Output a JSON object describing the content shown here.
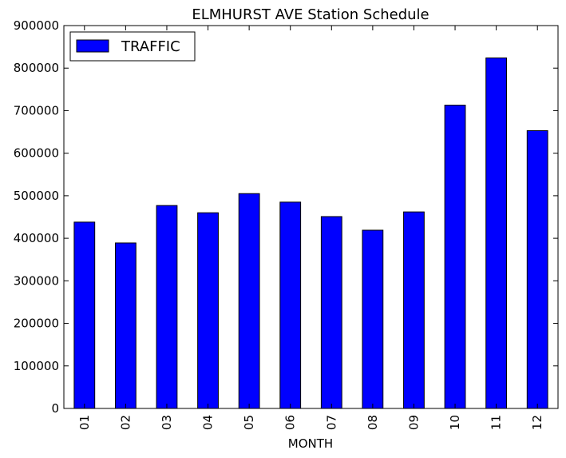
{
  "chart_data": {
    "type": "bar",
    "title": "ELMHURST AVE Station Schedule",
    "xlabel": "MONTH",
    "ylabel": "",
    "categories": [
      "01",
      "02",
      "03",
      "04",
      "05",
      "06",
      "07",
      "08",
      "09",
      "10",
      "11",
      "12"
    ],
    "series": [
      {
        "name": "TRAFFIC",
        "color": "#0000ff",
        "values": [
          438000,
          389000,
          477000,
          460000,
          505000,
          485000,
          451000,
          419000,
          462000,
          713000,
          824000,
          653000
        ]
      }
    ],
    "ylim": [
      0,
      900000
    ],
    "yticks": [
      0,
      100000,
      200000,
      300000,
      400000,
      500000,
      600000,
      700000,
      800000,
      900000
    ],
    "ytick_labels": [
      "0",
      "100000",
      "200000",
      "300000",
      "400000",
      "500000",
      "600000",
      "700000",
      "800000",
      "900000"
    ],
    "grid": false,
    "legend_position": "top-left"
  }
}
